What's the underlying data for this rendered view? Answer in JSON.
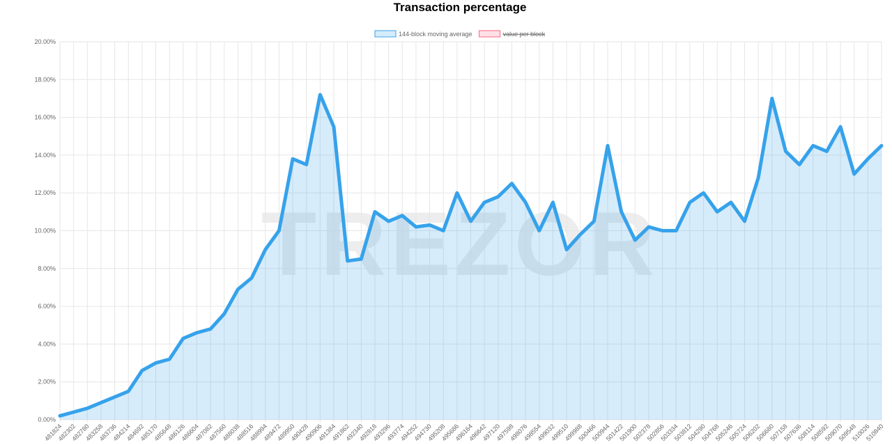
{
  "chart_data": {
    "type": "line",
    "title": "Transaction percentage",
    "watermark": "TREZOR",
    "categories": [
      "481824",
      "482302",
      "482780",
      "483258",
      "483736",
      "484214",
      "484692",
      "485170",
      "485648",
      "486126",
      "486604",
      "487082",
      "487560",
      "488038",
      "488516",
      "488994",
      "489472",
      "489950",
      "490428",
      "490906",
      "491384",
      "491862",
      "492340",
      "492818",
      "493296",
      "493774",
      "494252",
      "494730",
      "495208",
      "495686",
      "496164",
      "496642",
      "497120",
      "497598",
      "498076",
      "498554",
      "499032",
      "499510",
      "499988",
      "500466",
      "500944",
      "501422",
      "501900",
      "502378",
      "502856",
      "503334",
      "503812",
      "504290",
      "504768",
      "505246",
      "505724",
      "506202",
      "506680",
      "507158",
      "507636",
      "508114",
      "508592",
      "509070",
      "509548",
      "510026",
      "510840"
    ],
    "series": [
      {
        "name": "144-block moving average",
        "color": "#36a2eb",
        "fill": "rgba(54,162,235,0.2)",
        "values": [
          0.2,
          0.4,
          0.6,
          0.9,
          1.2,
          1.5,
          2.6,
          3.0,
          3.2,
          4.3,
          4.6,
          4.8,
          5.6,
          6.9,
          7.5,
          9.0,
          10.0,
          13.8,
          13.5,
          17.2,
          15.5,
          8.4,
          8.5,
          11.0,
          10.5,
          10.8,
          10.2,
          10.3,
          10.0,
          12.0,
          10.5,
          11.5,
          11.8,
          12.5,
          11.5,
          10.0,
          11.5,
          9.0,
          9.8,
          10.5,
          14.5,
          11.0,
          9.5,
          10.2,
          10.0,
          10.0,
          11.5,
          12.0,
          11.0,
          11.5,
          10.5,
          12.8,
          17.0,
          14.2,
          13.5,
          14.5,
          14.2,
          15.5,
          13.0,
          13.8,
          14.5
        ]
      },
      {
        "name": "value per block",
        "color": "#ff6384",
        "fill": "rgba(255,99,132,0.2)",
        "hidden": true
      }
    ],
    "ylim": [
      0,
      20
    ],
    "yticks": [
      {
        "value": 0,
        "label": "0.00%"
      },
      {
        "value": 2,
        "label": "2.00%"
      },
      {
        "value": 4,
        "label": "4.00%"
      },
      {
        "value": 6,
        "label": "6.00%"
      },
      {
        "value": 8,
        "label": "8.00%"
      },
      {
        "value": 10,
        "label": "10.00%"
      },
      {
        "value": 12,
        "label": "12.00%"
      },
      {
        "value": 14,
        "label": "14.00%"
      },
      {
        "value": 16,
        "label": "16.00%"
      },
      {
        "value": 18,
        "label": "18.00%"
      },
      {
        "value": 20,
        "label": "20.00%"
      }
    ],
    "grid": true
  }
}
